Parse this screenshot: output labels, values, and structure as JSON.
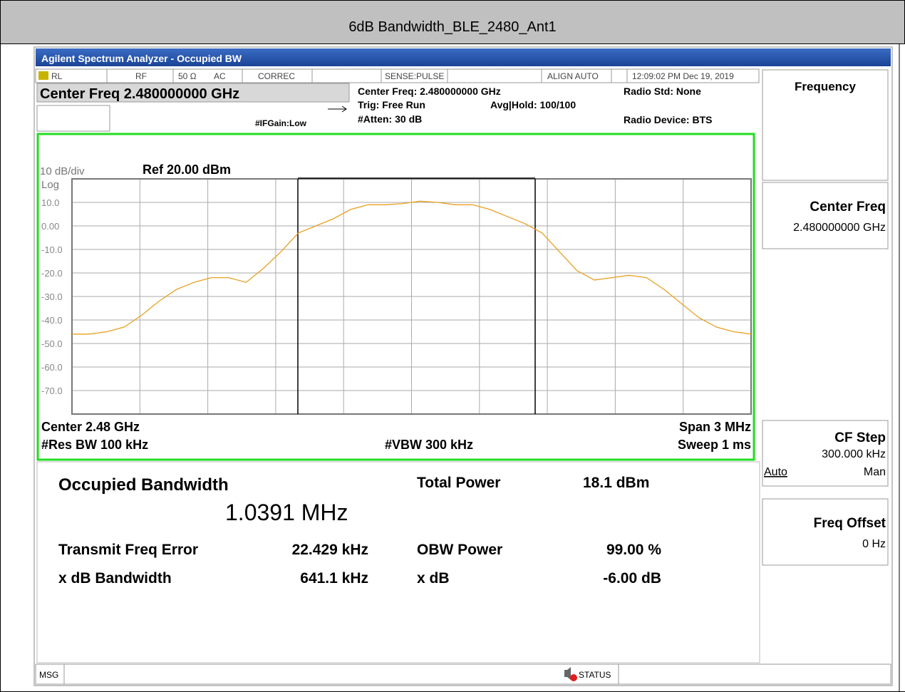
{
  "header": {
    "title": "6dB Bandwidth_BLE_2480_Ant1"
  },
  "analyzer": {
    "title_bar": "Agilent Spectrum Analyzer - Occupied BW",
    "status_row": [
      "RL",
      "RF",
      "50 Ω",
      "AC",
      "CORREC",
      "SENSE:PULSE",
      "ALIGN AUTO",
      "12:09:02 PM Dec 19, 2019"
    ],
    "center_freq": "Center Freq 2.480000000 GHz",
    "if_gain": "#IFGain:Low",
    "info": [
      "Center Freq: 2.480000000 GHz",
      "Trig: Free Run",
      "#Atten: 30 dB",
      "Avg|Hold: 100/100",
      "Radio Std: None",
      "Radio Device: BTS"
    ]
  },
  "chart_data": {
    "type": "line",
    "scale_label": "10 dB/div",
    "ref_label": "Ref 20.00 dBm",
    "log_label": "Log",
    "ylim": [
      -80,
      20
    ],
    "yticks": [
      {
        "value": 10,
        "label": "10.0"
      },
      {
        "value": 0,
        "label": "0.00"
      },
      {
        "value": -10,
        "label": "-10.0"
      },
      {
        "value": -20,
        "label": "-20.0"
      },
      {
        "value": -30,
        "label": "-30.0"
      },
      {
        "value": -40,
        "label": "-40.0"
      },
      {
        "value": -50,
        "label": "-50.0"
      },
      {
        "value": -60,
        "label": "-60.0"
      },
      {
        "value": -70,
        "label": "-70.0"
      }
    ],
    "grid": true,
    "series": [
      {
        "color": "#e8a020",
        "values": [
          -46,
          -46,
          -45,
          -43,
          -38,
          -32,
          -27,
          -24,
          -22,
          -22,
          -24,
          -18,
          -11,
          -3,
          0,
          3,
          7,
          9,
          9,
          9.5,
          10.5,
          10,
          9,
          9,
          7,
          4,
          1,
          -3,
          -11,
          -19,
          -23,
          -22,
          -21,
          -22,
          -27,
          -33,
          -39,
          -43,
          -45,
          -46
        ]
      }
    ],
    "footer": {
      "center": "Center  2.48 GHz",
      "res_bw": "#Res BW  100 kHz",
      "vbw": "#VBW  300 kHz",
      "span": "Span 3 MHz",
      "sweep": "Sweep  1 ms"
    }
  },
  "results": {
    "obw_label": "Occupied Bandwidth",
    "obw_value": "1.0391 MHz",
    "total_power_label": "Total Power",
    "total_power": "18.1 dBm",
    "tfe_label": "Transmit Freq Error",
    "tfe": "22.429 kHz",
    "obw_power_label": "OBW Power",
    "obw_power": "99.00 %",
    "xdb_bw_label": "x dB Bandwidth",
    "xdb_bw": "641.1 kHz",
    "xdb_label": "x dB",
    "xdb": "-6.00 dB"
  },
  "softkeys": {
    "menu": "Frequency",
    "center_freq": "Center Freq",
    "center_freq_value": "2.480000000 GHz",
    "cf_step": "CF Step",
    "cf_step_value": "300.000 kHz",
    "auto": "Auto",
    "man": "Man",
    "freq_offset": "Freq Offset",
    "freq_offset_value": "0 Hz"
  },
  "status_bar": {
    "msg": "MSG",
    "status": "STATUS"
  }
}
